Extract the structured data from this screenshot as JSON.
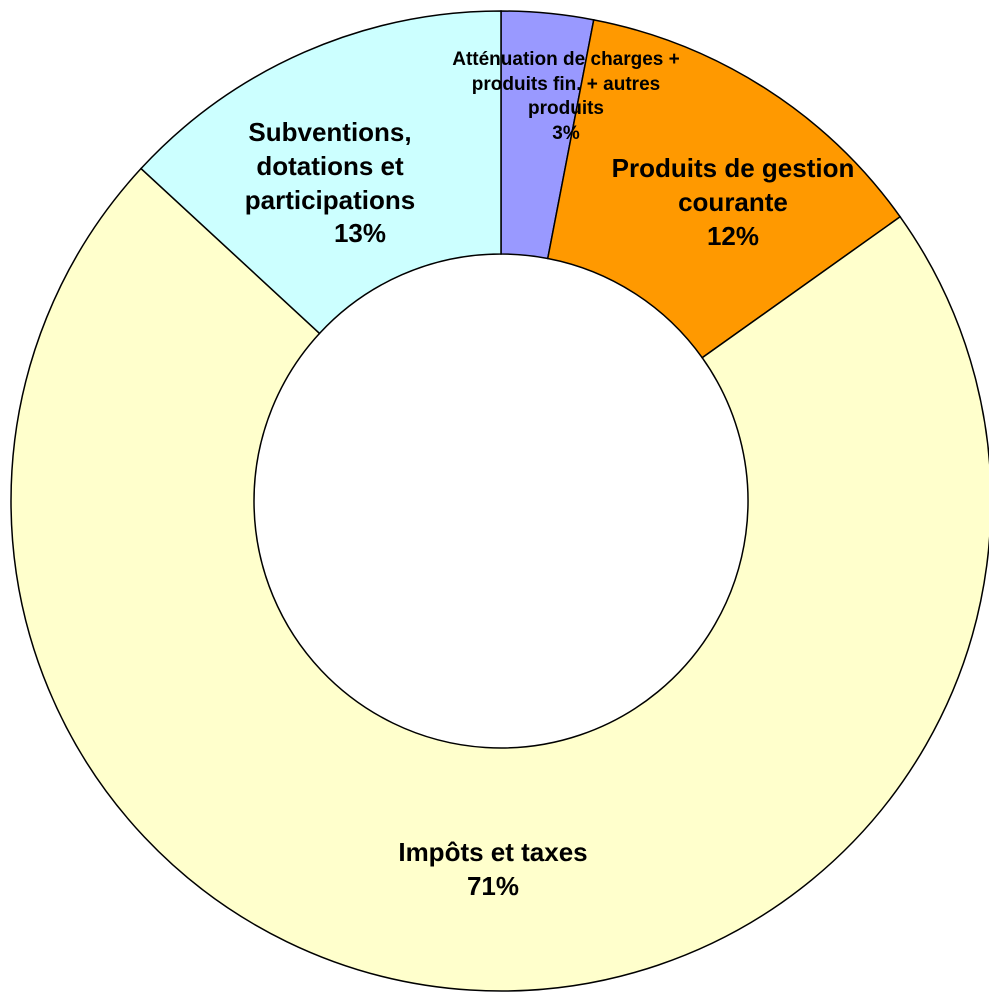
{
  "chart_data": {
    "type": "donut",
    "categories": [
      "Atténuation de charges + produits fin. + autres produits",
      "Produits de gestion courante",
      "Impôts et taxes",
      "Subventions, dotations et participations"
    ],
    "values": [
      3,
      12,
      71,
      13
    ],
    "value_labels": [
      "3%",
      "12%",
      "71%",
      "13%"
    ],
    "colors": [
      "#9999ff",
      "#ff9900",
      "#ffffcc",
      "#ccffff"
    ]
  }
}
